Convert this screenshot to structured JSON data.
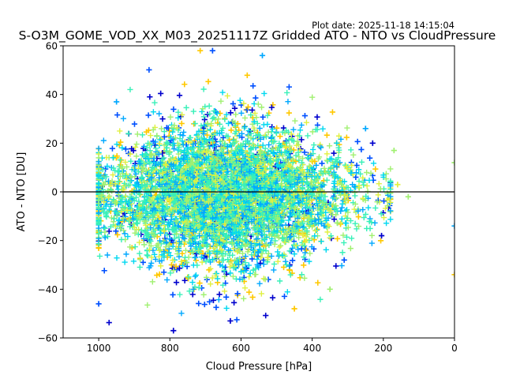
{
  "plot_date": "Plot date: 2025-11-18 14:15:04",
  "chart_data": {
    "type": "scatter",
    "title": "S-O3M_GOME_VOD_XX_M03_20251117Z Gridded ATO - NTO vs CloudPressure",
    "xlabel": "Cloud Pressure [hPa]",
    "ylabel": "ATO - NTO [DU]",
    "xlim": [
      1100,
      0
    ],
    "ylim": [
      -60,
      60
    ],
    "x_ticks": [
      1000,
      800,
      600,
      400,
      200,
      0
    ],
    "y_ticks": [
      -60,
      -40,
      -20,
      0,
      20,
      40,
      60
    ],
    "x_tick_labels": [
      "1000",
      "800",
      "600",
      "400",
      "200",
      "0"
    ],
    "y_tick_labels": [
      "−60",
      "−40",
      "−20",
      "0",
      "20",
      "40",
      "60"
    ],
    "reference_line_y": 0,
    "marker": "+",
    "grid": false,
    "series": [
      {
        "name": "navy",
        "color": "#0000cd",
        "share": 0.04
      },
      {
        "name": "blue",
        "color": "#0050ff",
        "share": 0.06
      },
      {
        "name": "azure",
        "color": "#00a8ff",
        "share": 0.14
      },
      {
        "name": "cyan",
        "color": "#00d8f0",
        "share": 0.12
      },
      {
        "name": "aquamarine",
        "color": "#38f0b8",
        "share": 0.26
      },
      {
        "name": "light-green",
        "color": "#a0f070",
        "share": 0.2
      },
      {
        "name": "yellow-green",
        "color": "#e0f040",
        "share": 0.1
      },
      {
        "name": "gold",
        "color": "#ffc800",
        "share": 0.08
      }
    ],
    "cloud_extent": {
      "pressure_min": 180,
      "pressure_max": 1000,
      "ato_nto_min": -58,
      "ato_nto_max": 58,
      "center_pressure": 640,
      "center_value": -2
    },
    "notable_points": [
      {
        "x": 0,
        "y": 12,
        "color": "#a0f070"
      },
      {
        "x": 0,
        "y": -14,
        "color": "#00a8ff"
      },
      {
        "x": 0,
        "y": -34,
        "color": "#ffc800"
      },
      {
        "x": 130,
        "y": -2,
        "color": "#a0f070"
      },
      {
        "x": 170,
        "y": 17,
        "color": "#a0f070"
      },
      {
        "x": 160,
        "y": 3,
        "color": "#e0f040"
      },
      {
        "x": 680,
        "y": 58,
        "color": "#0050ff"
      },
      {
        "x": 540,
        "y": 56,
        "color": "#00a8ff"
      },
      {
        "x": 950,
        "y": 37,
        "color": "#00a8ff"
      },
      {
        "x": 790,
        "y": -57,
        "color": "#0000cd"
      },
      {
        "x": 630,
        "y": -53,
        "color": "#0000cd"
      },
      {
        "x": 1000,
        "y": -46,
        "color": "#0050ff"
      },
      {
        "x": 450,
        "y": -48,
        "color": "#ffc800"
      },
      {
        "x": 350,
        "y": -40,
        "color": "#a0f070"
      },
      {
        "x": 310,
        "y": -28,
        "color": "#0050ff"
      },
      {
        "x": 205,
        "y": -18,
        "color": "#0000cd"
      },
      {
        "x": 250,
        "y": 26,
        "color": "#00a8ff"
      },
      {
        "x": 230,
        "y": 20,
        "color": "#0000cd"
      }
    ]
  }
}
